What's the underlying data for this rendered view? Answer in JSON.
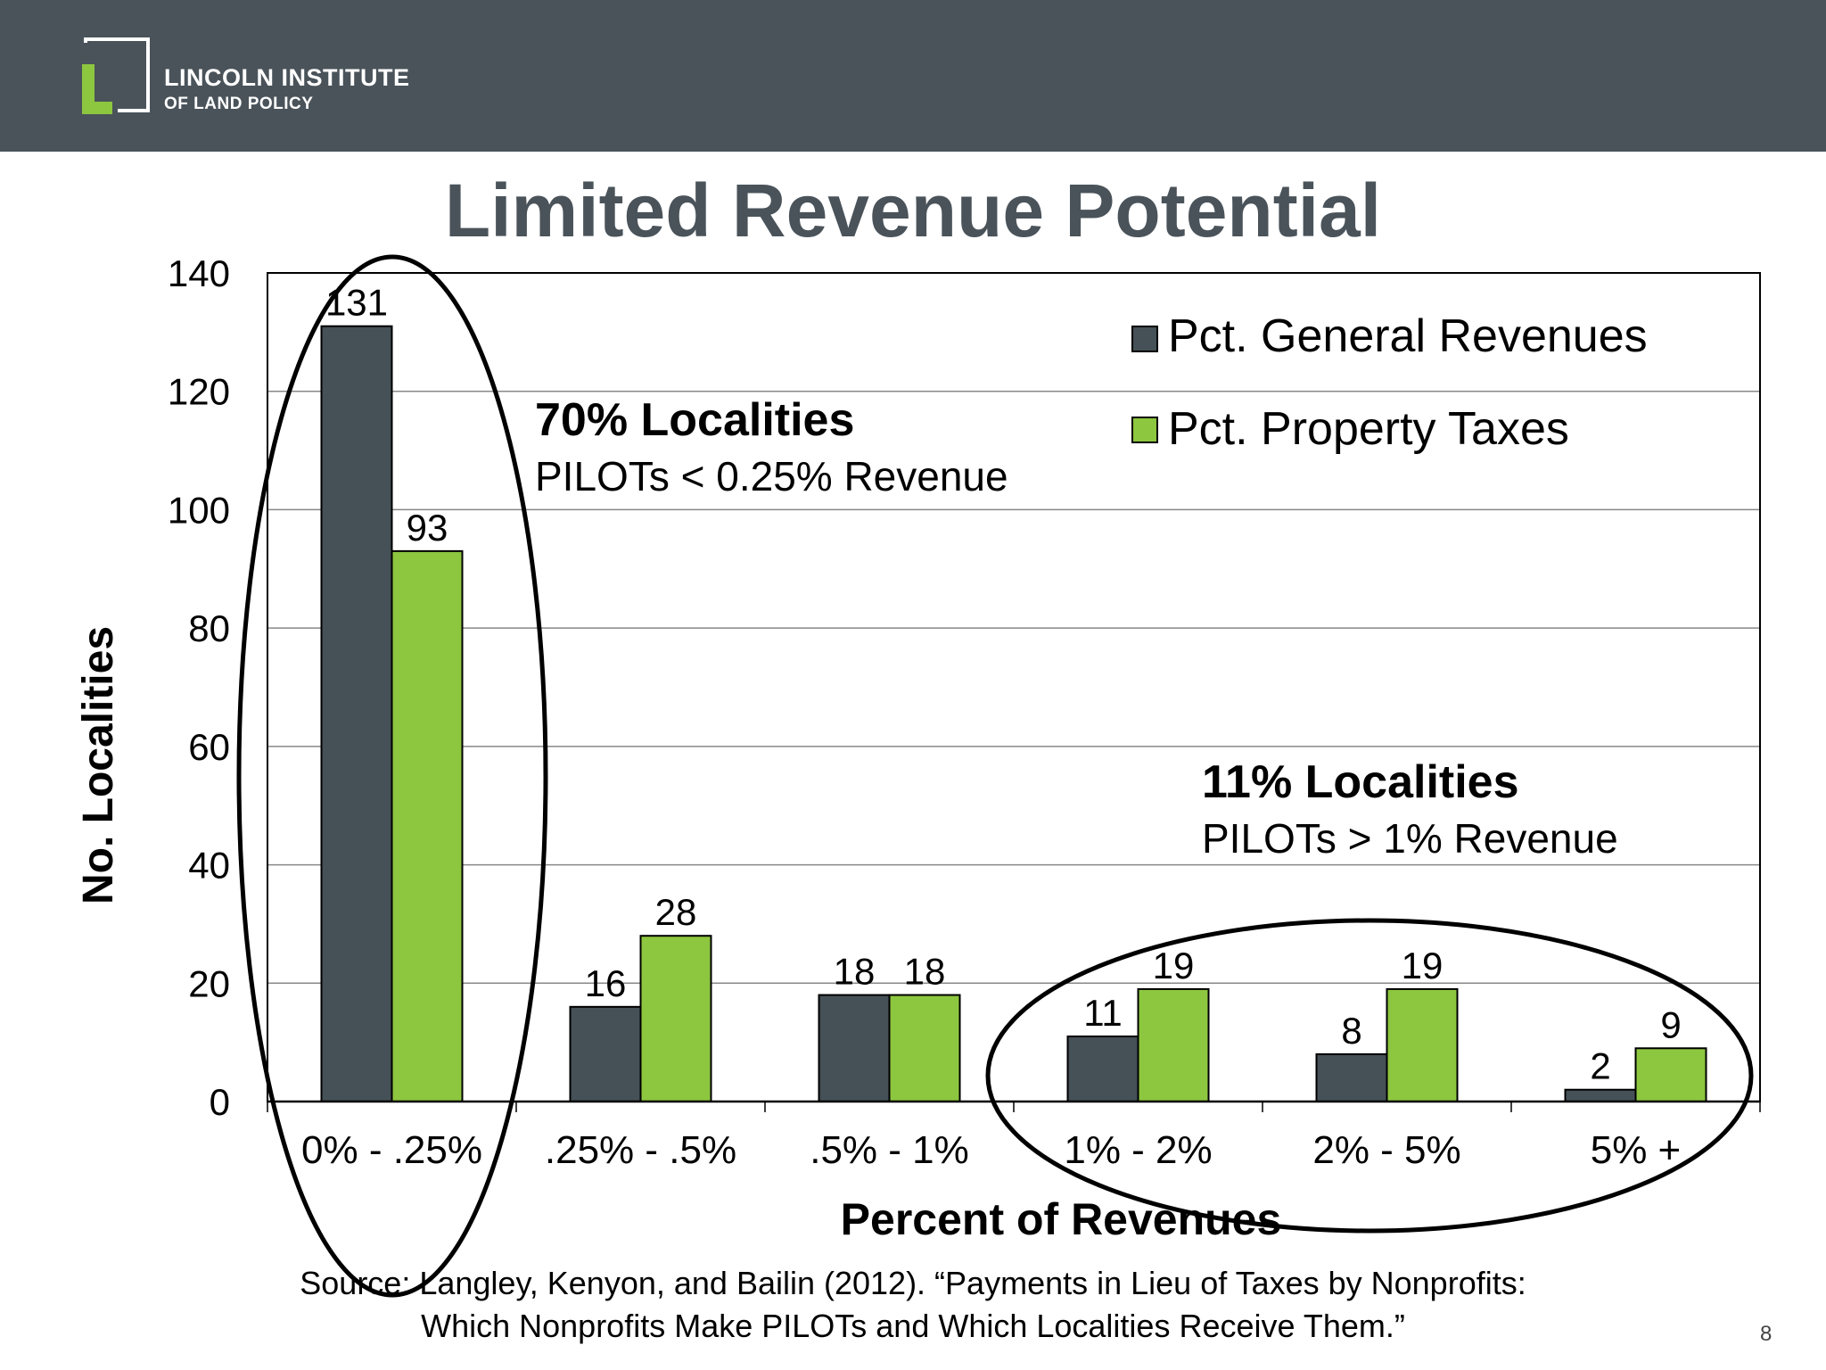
{
  "header": {
    "org_line1": "LINCOLN INSTITUTE",
    "org_line2": "OF LAND POLICY"
  },
  "slide_title": "Limited Revenue Potential",
  "chart_data": {
    "type": "bar",
    "categories": [
      "0% - .25%",
      ".25% - .5%",
      ".5% - 1%",
      "1% - 2%",
      "2% - 5%",
      "5% +"
    ],
    "series": [
      {
        "name": "Pct. General Revenues",
        "values": [
          131,
          16,
          18,
          11,
          8,
          2
        ],
        "color": "#455157"
      },
      {
        "name": "Pct. Property Taxes",
        "values": [
          93,
          28,
          18,
          19,
          19,
          9
        ],
        "color": "#8dc63f"
      }
    ],
    "xlabel": "Percent of Revenues",
    "ylabel": "No. Localities",
    "ylim": [
      0,
      140
    ],
    "yticks": [
      0,
      20,
      40,
      60,
      80,
      100,
      120,
      140
    ],
    "grid": true,
    "legend_position": "top-right",
    "annotations": [
      {
        "heading": "70% Localities",
        "text": "PILOTs < 0.25% Revenue"
      },
      {
        "heading": "11% Localities",
        "text": "PILOTs > 1% Revenue"
      }
    ]
  },
  "source_line1": "Source: Langley, Kenyon, and Bailin (2012). “Payments in Lieu of Taxes by Nonprofits:",
  "source_line2": "Which Nonprofits Make PILOTs and Which Localities Receive Them.”",
  "page_number": "8"
}
